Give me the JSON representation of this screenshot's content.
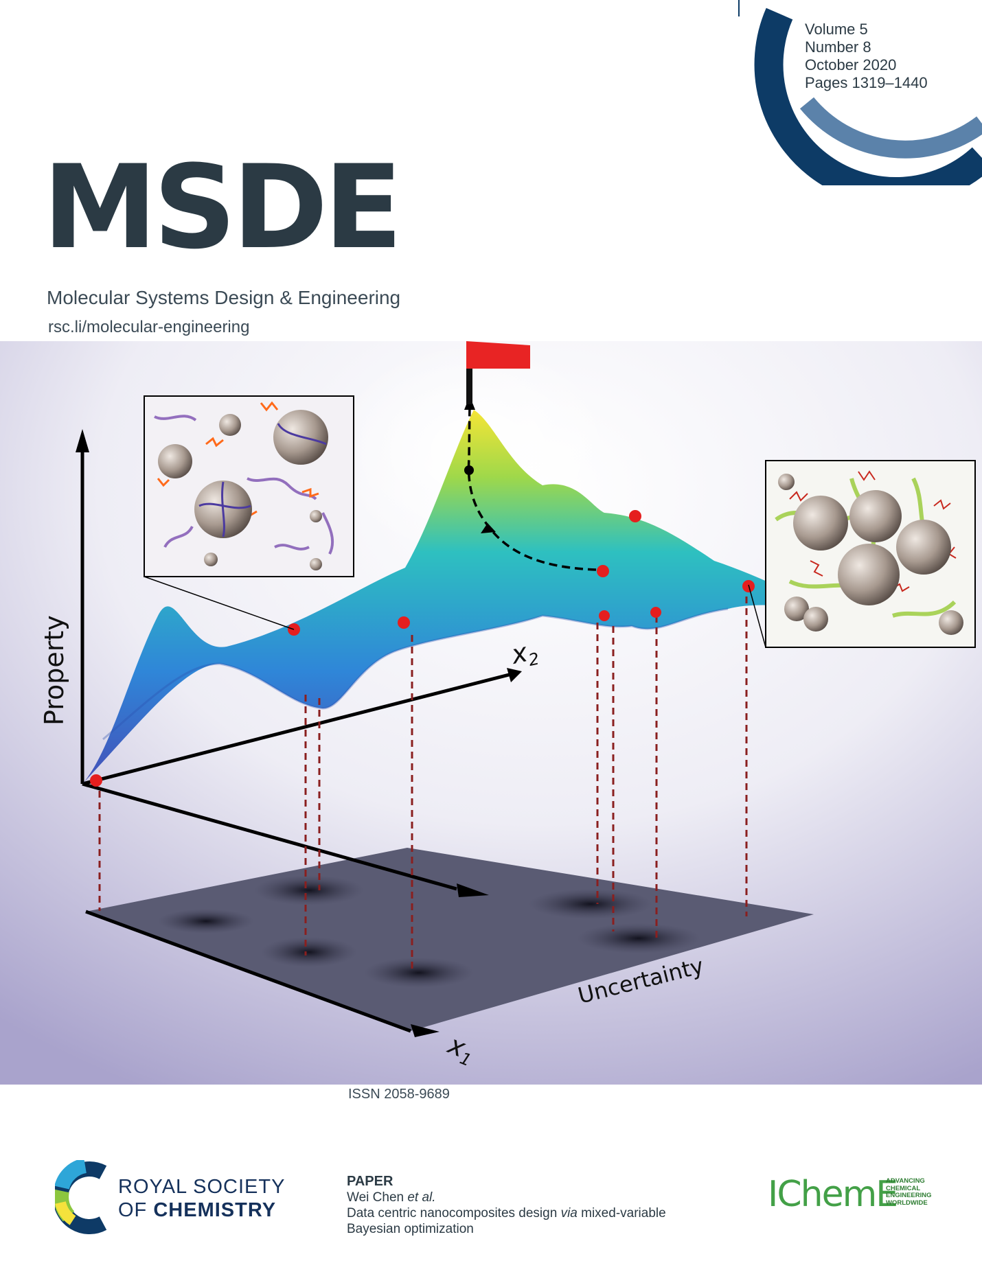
{
  "journal": {
    "abbrev": "MSDE",
    "full_name": "Molecular Systems Design & Engineering",
    "url": "rsc.li/molecular-engineering"
  },
  "issue": {
    "volume": "Volume 5",
    "number": "Number 8",
    "date": "October 2020",
    "pages": "Pages 1319–1440"
  },
  "issn": "ISSN 2058-9689",
  "illustration": {
    "y_axis_label": "Property",
    "x2_label": "x",
    "x2_sub": "2",
    "x1_label": "x",
    "x1_sub": "1",
    "plane_label": "Uncertainty"
  },
  "publisher": {
    "line1": "ROYAL SOCIETY",
    "line2_prefix": "OF ",
    "line2_bold": "CHEMISTRY"
  },
  "article": {
    "type": "PAPER",
    "authors_main": "Wei Chen ",
    "authors_etal": "et al.",
    "title_part1": "Data centric nanocomposites design ",
    "title_via": "via",
    "title_part2": " mixed-variable",
    "title_line2": "Bayesian optimization"
  },
  "partner": {
    "name": "IChemE",
    "tagline": [
      "ADVANCING",
      "CHEMICAL",
      "ENGINEERING",
      "WORLDWIDE"
    ]
  }
}
